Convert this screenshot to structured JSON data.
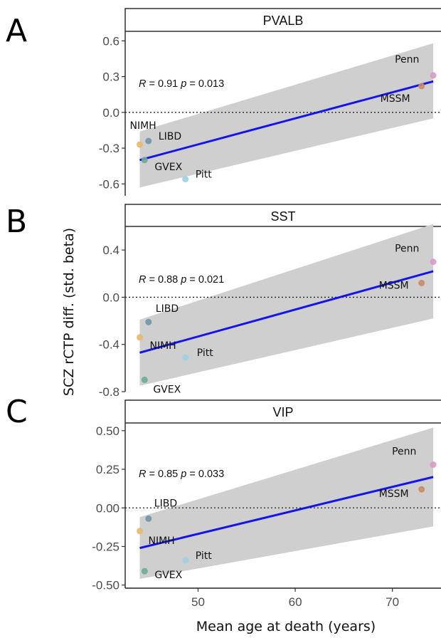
{
  "ylabel": "SCZ rCTP diff. (std. beta)",
  "xlabel": "Mean age at death (years)",
  "x_ticks": [
    50,
    60,
    70
  ],
  "colors": {
    "NIMH": "#e8b96a",
    "LIBD": "#6f93a8",
    "GVEX": "#6aab98",
    "Pitt": "#9fcfe3",
    "Penn": "#d79ac4",
    "MSSM": "#c98a66",
    "line": "#1515e8",
    "band": "#cfcfcf"
  },
  "chart_data": [
    {
      "type": "scatter",
      "panel": "A",
      "title": "PVALB",
      "stat": "R = 0.91 p = 0.013",
      "xlim": [
        42.5,
        75
      ],
      "ylim": [
        -0.7,
        0.68
      ],
      "y_ticks": [
        -0.6,
        -0.3,
        0.0,
        0.3,
        0.6
      ],
      "y_tick_labels": [
        "-0.6",
        "-0.3",
        "0.0",
        "0.3",
        "0.6"
      ],
      "points": [
        {
          "label": "NIMH",
          "x": 44.0,
          "y": -0.27
        },
        {
          "label": "LIBD",
          "x": 44.9,
          "y": -0.24
        },
        {
          "label": "GVEX",
          "x": 44.5,
          "y": -0.4
        },
        {
          "label": "Pitt",
          "x": 48.7,
          "y": -0.56
        },
        {
          "label": "Penn",
          "x": 74.2,
          "y": 0.31
        },
        {
          "label": "MSSM",
          "x": 73.0,
          "y": 0.22
        }
      ],
      "fit": {
        "x": [
          44.0,
          74.2
        ],
        "y": [
          -0.4,
          0.26
        ]
      },
      "band": {
        "x": [
          44.0,
          74.2
        ],
        "lower": [
          -0.63,
          -0.05
        ],
        "upper": [
          -0.16,
          0.58
        ]
      }
    },
    {
      "type": "scatter",
      "panel": "B",
      "title": "SST",
      "stat": "R = 0.88 p = 0.021",
      "xlim": [
        42.5,
        75
      ],
      "ylim": [
        -0.8,
        0.6
      ],
      "y_ticks": [
        -0.8,
        -0.4,
        0.0,
        0.4
      ],
      "y_tick_labels": [
        "-0.8",
        "-0.4",
        "0.0",
        "0.4"
      ],
      "points": [
        {
          "label": "NIMH",
          "x": 44.0,
          "y": -0.34
        },
        {
          "label": "LIBD",
          "x": 44.9,
          "y": -0.21
        },
        {
          "label": "GVEX",
          "x": 44.5,
          "y": -0.7
        },
        {
          "label": "Pitt",
          "x": 48.7,
          "y": -0.51
        },
        {
          "label": "Penn",
          "x": 74.2,
          "y": 0.3
        },
        {
          "label": "MSSM",
          "x": 73.0,
          "y": 0.12
        }
      ],
      "fit": {
        "x": [
          44.0,
          74.2
        ],
        "y": [
          -0.47,
          0.22
        ]
      },
      "band": {
        "x": [
          44.0,
          74.2
        ],
        "lower": [
          -0.75,
          -0.18
        ],
        "upper": [
          -0.19,
          0.62
        ]
      }
    },
    {
      "type": "scatter",
      "panel": "C",
      "title": "VIP",
      "stat": "R = 0.85 p = 0.033",
      "xlim": [
        42.5,
        75
      ],
      "ylim": [
        -0.52,
        0.55
      ],
      "y_ticks": [
        -0.5,
        -0.25,
        0.0,
        0.25,
        0.5
      ],
      "y_tick_labels": [
        "-0.50",
        "-0.25",
        "0.00",
        "0.25",
        "0.50"
      ],
      "points": [
        {
          "label": "NIMH",
          "x": 44.0,
          "y": -0.15
        },
        {
          "label": "LIBD",
          "x": 44.9,
          "y": -0.07
        },
        {
          "label": "GVEX",
          "x": 44.5,
          "y": -0.41
        },
        {
          "label": "Pitt",
          "x": 48.7,
          "y": -0.34
        },
        {
          "label": "Penn",
          "x": 74.2,
          "y": 0.28
        },
        {
          "label": "MSSM",
          "x": 73.0,
          "y": 0.12
        }
      ],
      "fit": {
        "x": [
          44.0,
          74.2
        ],
        "y": [
          -0.26,
          0.2
        ]
      },
      "band": {
        "x": [
          44.0,
          74.2
        ],
        "lower": [
          -0.46,
          -0.12
        ],
        "upper": [
          -0.06,
          0.52
        ]
      }
    }
  ]
}
